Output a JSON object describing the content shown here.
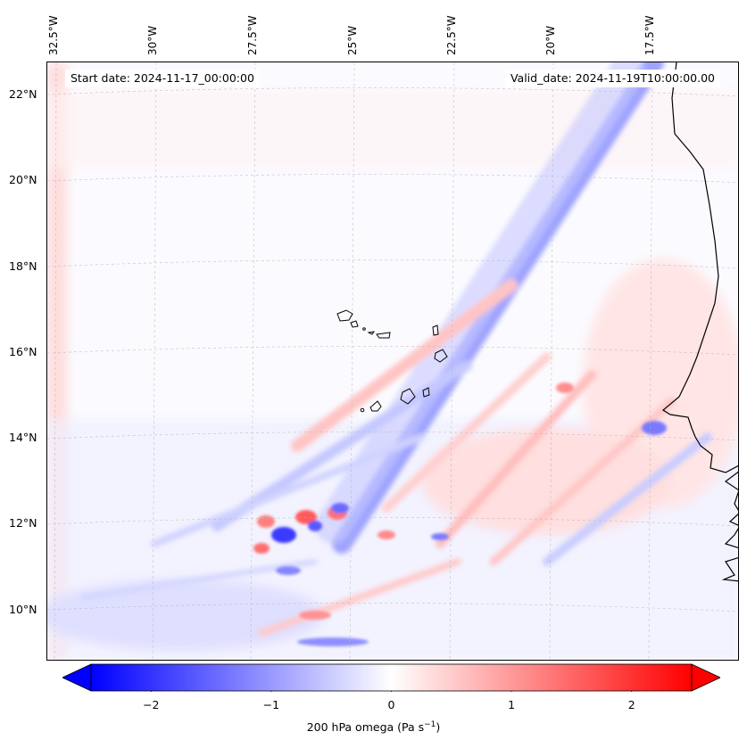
{
  "map": {
    "start_label": "Start date: 2024-11-17_00:00:00",
    "valid_label": "Valid_date: 2024-11-19T10:00:00.00",
    "lon_labels": [
      "32.5°W",
      "30°W",
      "27.5°W",
      "25°W",
      "22.5°W",
      "20°W",
      "17.5°W"
    ],
    "lat_labels": [
      "22°N",
      "20°N",
      "18°N",
      "16°N",
      "14°N",
      "12°N",
      "10°N"
    ],
    "extent": {
      "lon_min": -32.8,
      "lon_max": -15.2,
      "lat_min": 8.9,
      "lat_max": 22.7
    },
    "gridlines": "dashed",
    "colormap": "bwr",
    "colors": {
      "negative": "#0000ff",
      "zero": "#ffffff",
      "positive": "#ff0000",
      "coast": "#000000"
    }
  },
  "colorbar": {
    "label_prefix": "200 hPa omega (Pa s",
    "label_exp": "−1",
    "label_suffix": ")",
    "ticks": [
      "−2",
      "−1",
      "0",
      "1",
      "2"
    ],
    "tick_values": [
      -2,
      -1,
      0,
      1,
      2
    ],
    "range": [
      -2.5,
      2.5
    ],
    "extend": "both"
  }
}
